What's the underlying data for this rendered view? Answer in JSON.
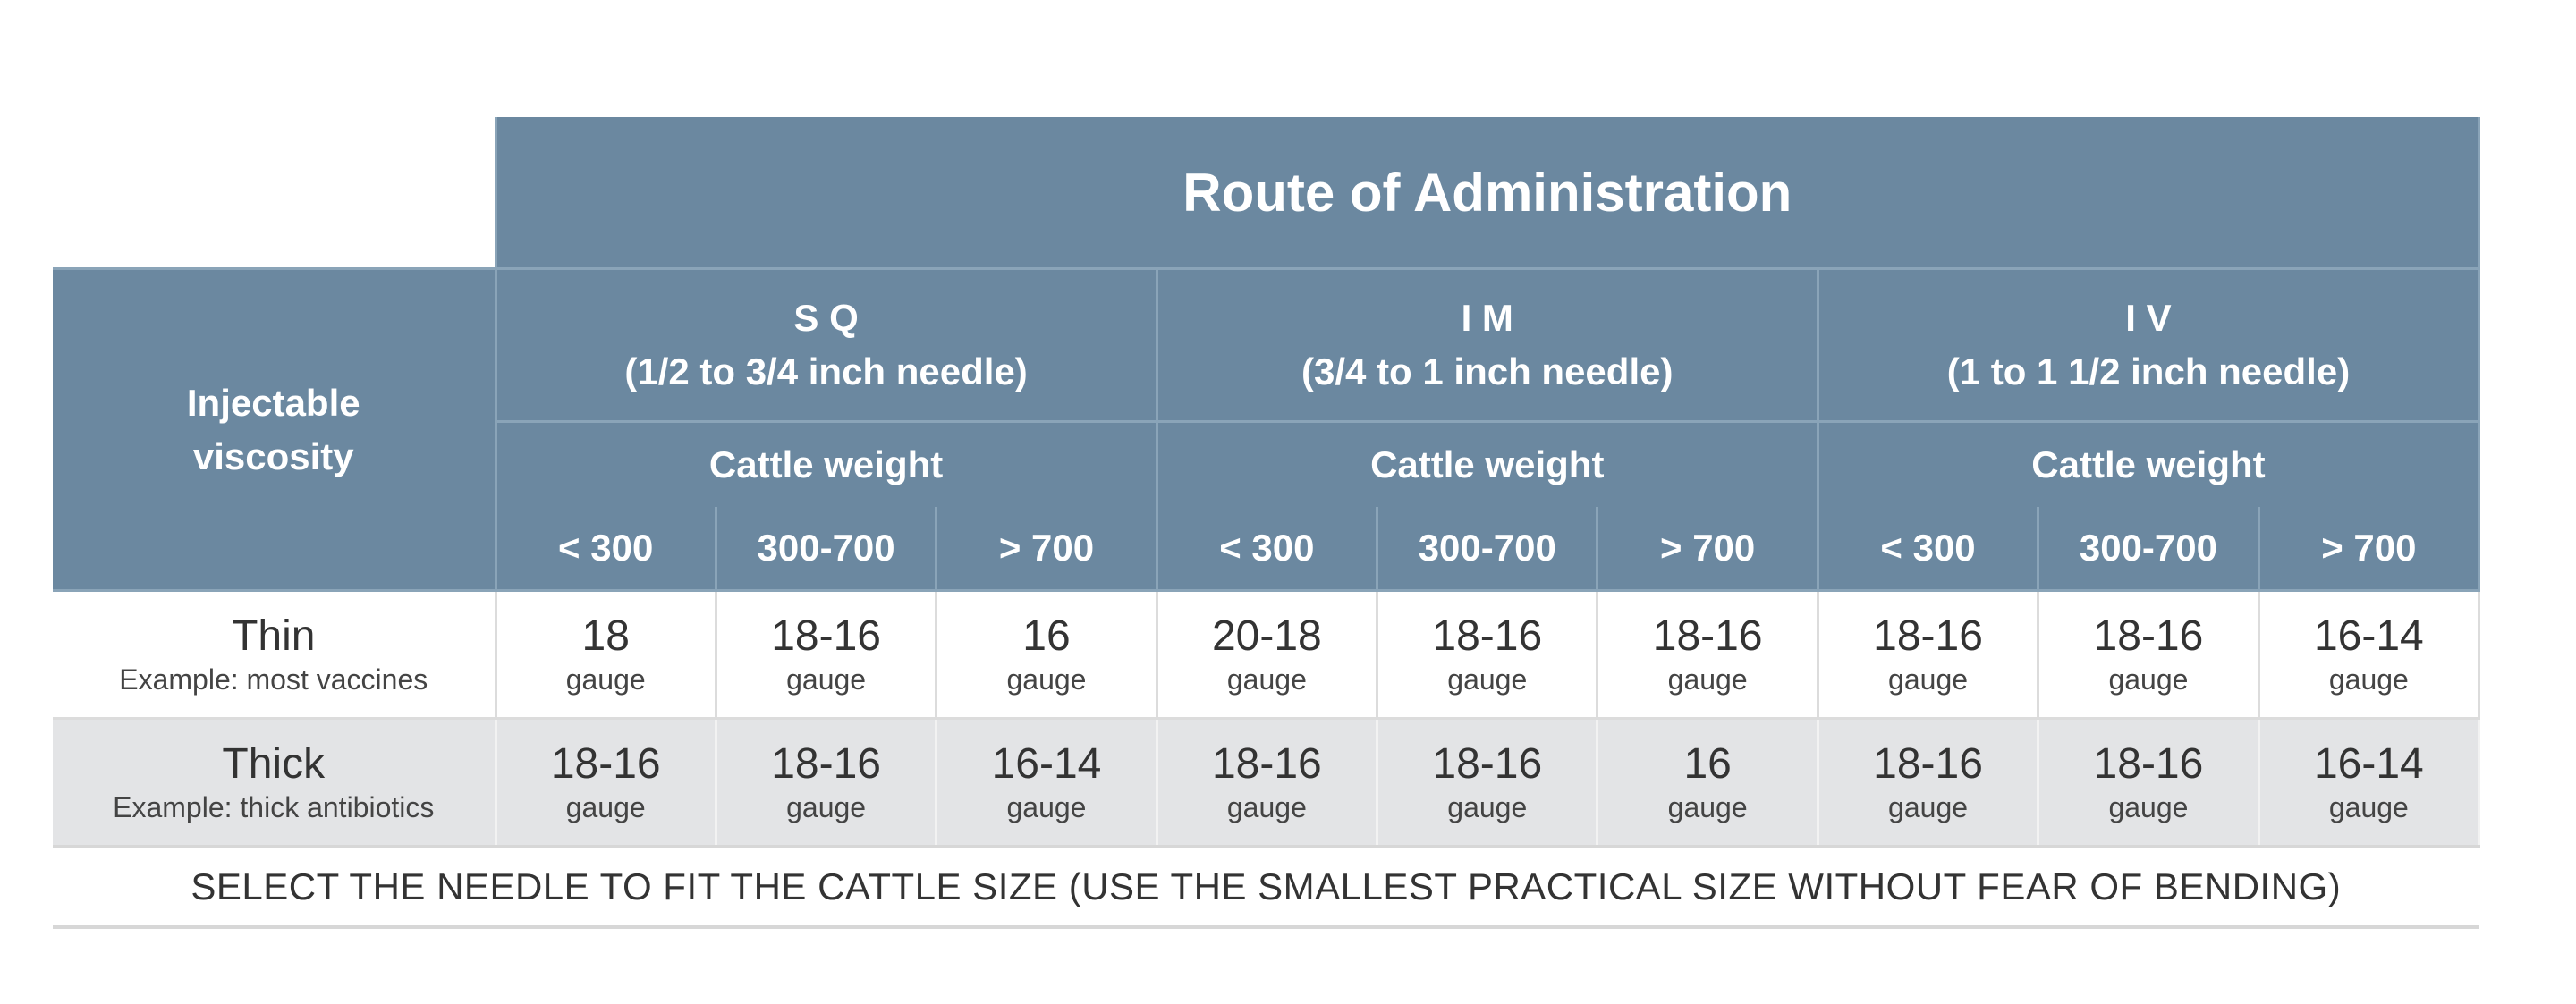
{
  "table": {
    "route_title": "Route of Administration",
    "viscosity_header": [
      "Injectable",
      "viscosity"
    ],
    "routes": [
      {
        "name": "S Q",
        "needle": "(1/2 to 3/4 inch needle)",
        "weight_label": "Cattle weight"
      },
      {
        "name": "I M",
        "needle": "(3/4 to 1 inch needle)",
        "weight_label": "Cattle weight"
      },
      {
        "name": "I V",
        "needle": "(1 to 1 1/2 inch needle)",
        "weight_label": "Cattle weight"
      }
    ],
    "weight_columns": [
      "< 300",
      "300-700",
      "> 700"
    ],
    "rows": [
      {
        "name": "Thin",
        "example": "Example: most vaccines",
        "values": [
          "18",
          "18-16",
          "16",
          "20-18",
          "18-16",
          "18-16",
          "18-16",
          "18-16",
          "16-14"
        ]
      },
      {
        "name": "Thick",
        "example": "Example: thick antibiotics",
        "values": [
          "18-16",
          "18-16",
          "16-14",
          "18-16",
          "18-16",
          "16",
          "18-16",
          "18-16",
          "16-14"
        ]
      }
    ],
    "unit": "gauge",
    "note": "SELECT THE NEEDLE TO FIT THE CATTLE SIZE (USE THE SMALLEST PRACTICAL SIZE WITHOUT FEAR OF BENDING)"
  }
}
